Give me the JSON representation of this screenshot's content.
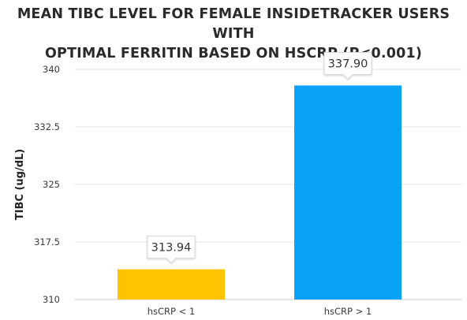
{
  "chart_data": {
    "type": "bar",
    "title_lines": [
      "MEAN TIBC LEVEL FOR FEMALE INSIDETRACKER USERS WITH",
      "OPTIMAL FERRITIN BASED ON HSCRP (P<0.001)"
    ],
    "xlabel": "",
    "ylabel": "TIBC (ug/dL)",
    "categories": [
      "hsCRP < 1",
      "hsCRP > 1"
    ],
    "values": [
      313.94,
      337.9
    ],
    "value_labels": [
      "313.94",
      "337.90"
    ],
    "colors": [
      "#FFC400",
      "#0AA2F5"
    ],
    "ylim": [
      310,
      340
    ],
    "yticks": [
      310,
      317.5,
      325,
      332.5,
      340
    ],
    "ytick_labels": [
      "310",
      "317.5",
      "325",
      "332.5",
      "340"
    ],
    "grid": true
  }
}
